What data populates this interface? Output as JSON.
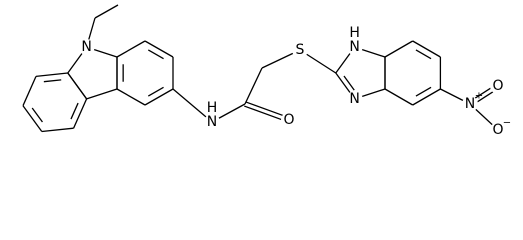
{
  "molecule": {
    "atoms": [
      {
        "symbol": "N"
      },
      {
        "symbol": "N",
        "h": "H"
      },
      {
        "symbol": "O"
      },
      {
        "symbol": "S"
      },
      {
        "symbol": "N",
        "h": "H"
      },
      {
        "symbol": "N"
      },
      {
        "symbol": "N",
        "charge": "+"
      },
      {
        "symbol": "O"
      },
      {
        "symbol": "O",
        "charge": "−"
      }
    ]
  }
}
